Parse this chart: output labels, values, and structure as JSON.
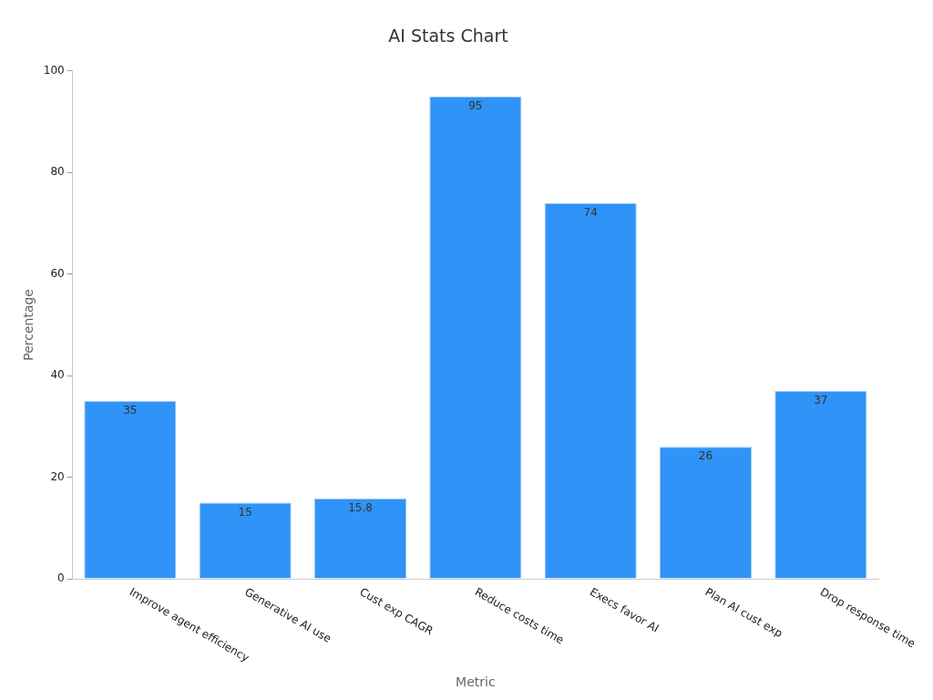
{
  "chart_data": {
    "type": "bar",
    "title": "AI Stats Chart",
    "xlabel": "Metric",
    "ylabel": "Percentage",
    "categories": [
      "Improve agent efficiency",
      "Generative AI use",
      "Cust exp CAGR",
      "Reduce costs time",
      "Execs favor AI",
      "Plan AI cust exp",
      "Drop response time"
    ],
    "values": [
      35,
      15,
      15.8,
      95,
      74,
      26,
      37
    ],
    "color": "#2f93f7",
    "ylim": [
      0,
      100
    ],
    "yticks": [
      0,
      20,
      40,
      60,
      80,
      100
    ],
    "grid": false,
    "legend": false,
    "data_labels": true
  }
}
